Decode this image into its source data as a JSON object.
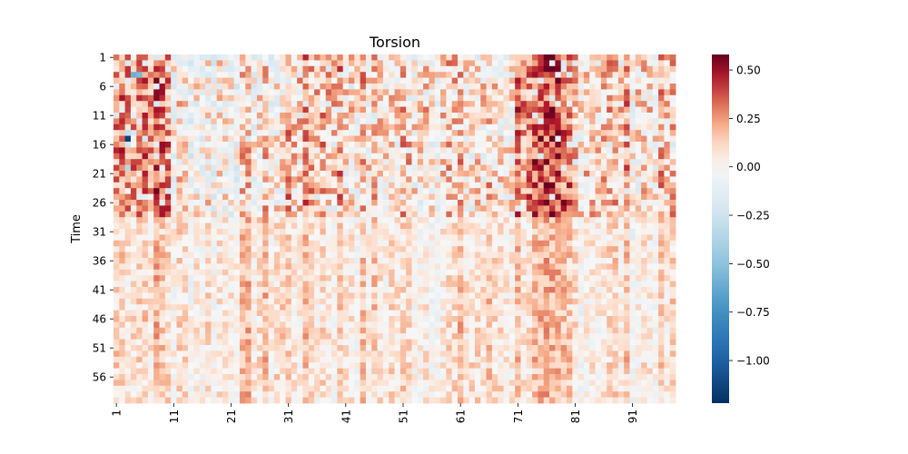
{
  "chart_data": {
    "type": "heatmap",
    "title": "Torsion",
    "xlabel": "",
    "ylabel": "Time",
    "rows": 60,
    "cols": 98,
    "row_start": 1,
    "col_start": 1,
    "x_tick_labels": [
      "1",
      "11",
      "21",
      "31",
      "41",
      "51",
      "61",
      "71",
      "81",
      "91"
    ],
    "y_tick_labels": [
      "1",
      "6",
      "11",
      "16",
      "21",
      "26",
      "31",
      "36",
      "41",
      "46",
      "51",
      "56"
    ],
    "colorscale": "RdBu_r",
    "vmin": -1.22,
    "vmax": 0.58,
    "colorbar_ticks": [
      0.5,
      0.25,
      0.0,
      -0.25,
      -0.5,
      -0.75,
      -1.0
    ],
    "colorbar_tick_labels": [
      "0.50",
      "0.25",
      "0.00",
      "−0.25",
      "−0.50",
      "−0.75",
      "−1.00"
    ],
    "column_bands": [
      {
        "col_from": 1,
        "col_to": 10,
        "early": 0.28,
        "late": 0.12
      },
      {
        "col_from": 11,
        "col_to": 20,
        "early": 0.02,
        "late": 0.05
      },
      {
        "col_from": 21,
        "col_to": 30,
        "early": 0.05,
        "late": 0.1
      },
      {
        "col_from": 31,
        "col_to": 40,
        "early": 0.18,
        "late": 0.08
      },
      {
        "col_from": 41,
        "col_to": 50,
        "early": 0.1,
        "late": 0.07
      },
      {
        "col_from": 51,
        "col_to": 60,
        "early": 0.12,
        "late": 0.06
      },
      {
        "col_from": 61,
        "col_to": 70,
        "early": 0.08,
        "late": 0.09
      },
      {
        "col_from": 71,
        "col_to": 80,
        "early": 0.3,
        "late": 0.12
      },
      {
        "col_from": 81,
        "col_to": 90,
        "early": 0.14,
        "late": 0.07
      },
      {
        "col_from": 91,
        "col_to": 98,
        "early": 0.1,
        "late": 0.05
      }
    ],
    "notable_cells": [
      {
        "row": 4,
        "col": 4,
        "value": -0.6
      },
      {
        "row": 4,
        "col": 5,
        "value": -0.55
      },
      {
        "row": 15,
        "col": 3,
        "value": -1.15
      },
      {
        "row": 14,
        "col": 3,
        "value": -0.3
      },
      {
        "row": 16,
        "col": 3,
        "value": -0.25
      },
      {
        "row": 20,
        "col": 3,
        "value": -0.35
      }
    ]
  }
}
